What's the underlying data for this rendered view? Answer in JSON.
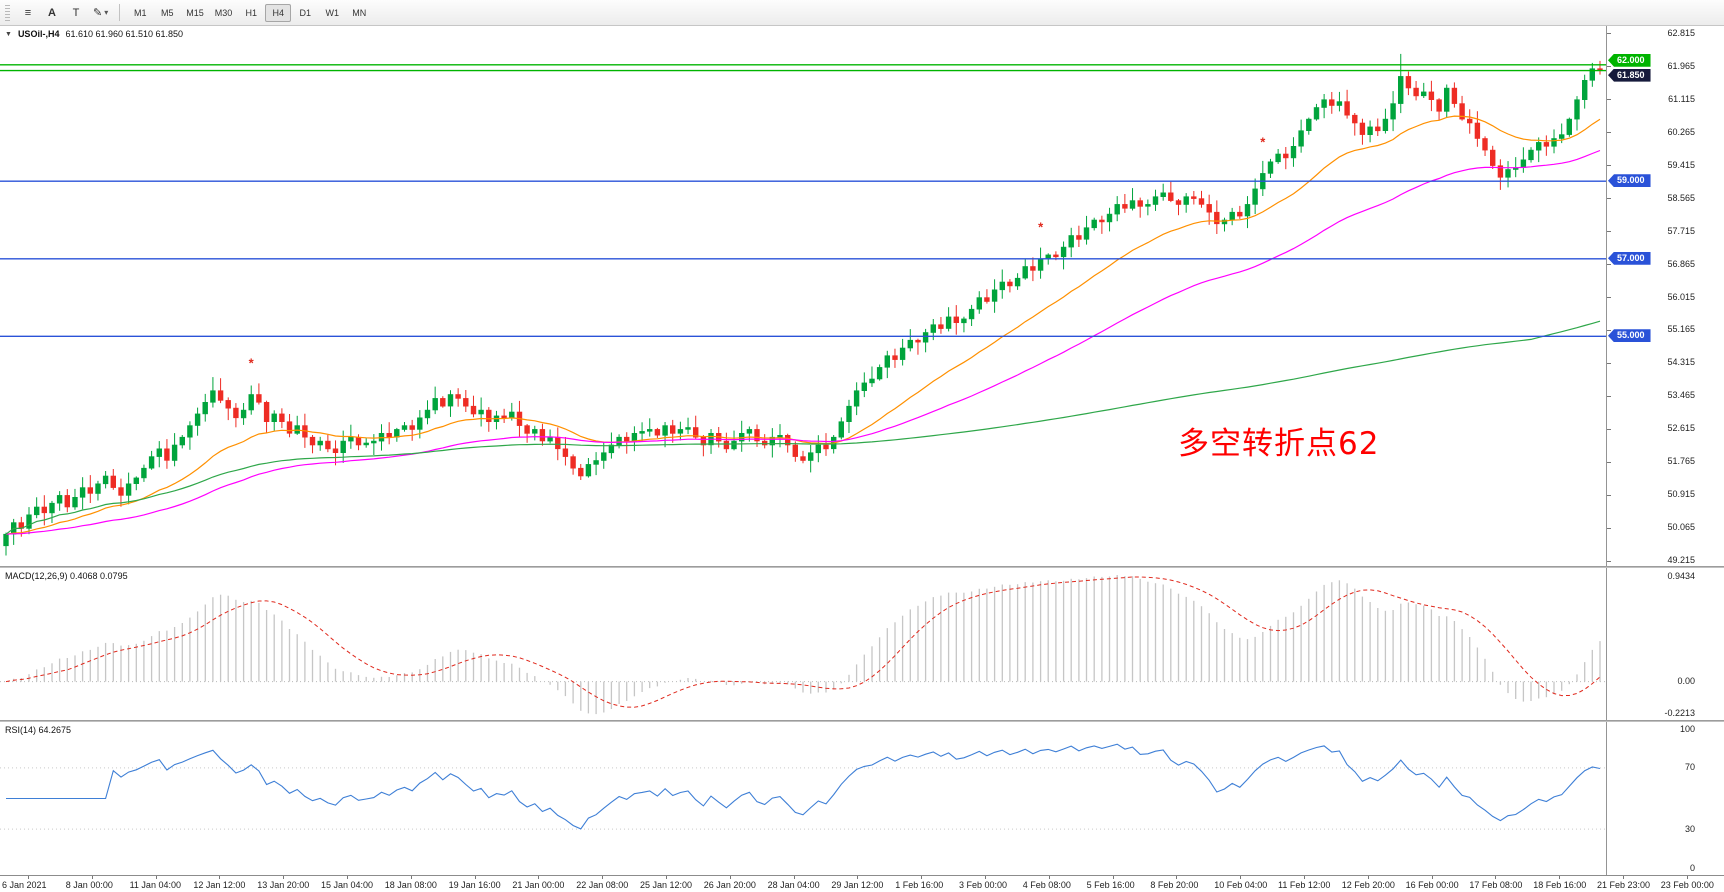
{
  "toolbar": {
    "tools": {
      "menu_glyph": "≡",
      "cursor_label": "A",
      "text_label": "T",
      "draw_glyph": "✎",
      "caret": "▾"
    },
    "timeframes": [
      "M1",
      "M5",
      "M15",
      "M30",
      "H1",
      "H4",
      "D1",
      "W1",
      "MN"
    ],
    "active_timeframe": "H4"
  },
  "chart": {
    "collapse_glyph": "▼",
    "symbol": "USOil-,H4",
    "ohlc": "61.610 61.960 61.510 61.850",
    "annotation": {
      "text": "多空转折点62",
      "color": "#FF0000"
    }
  },
  "colors": {
    "up": "#00A43C",
    "down": "#EE2C24",
    "hline_blue": "#2A52D8",
    "hline_green": "#00B400",
    "last_tag_bg": "#161A3C",
    "macd_hist": "#C6C6C6",
    "macd_signal": "#E02A1E",
    "rsi_line": "#3E7FD6"
  },
  "price_axis_ticks": [
    "62.815",
    "61.965",
    "61.115",
    "60.265",
    "59.415",
    "58.565",
    "57.715",
    "56.865",
    "56.015",
    "55.165",
    "54.315",
    "53.465",
    "52.615",
    "51.765",
    "50.915",
    "50.065",
    "49.215"
  ],
  "chart_data": {
    "type": "candlestick",
    "symbol": "USOil",
    "timeframe": "H4",
    "current_bar": {
      "open": 61.61,
      "high": 61.96,
      "low": 61.51,
      "close": 61.85
    },
    "price_range": {
      "min": 49.08,
      "max": 63.0
    },
    "hlines": [
      {
        "price": 62.0,
        "color": "#00B400",
        "label": "62.000",
        "tag_dy": -4
      },
      {
        "price": 61.85,
        "color": "#00B400",
        "label": null,
        "tag_dy": 0
      },
      {
        "price": 59.0,
        "color": "#2A52D8",
        "label": "59.000",
        "tag_dy": 0
      },
      {
        "price": 57.0,
        "color": "#2A52D8",
        "label": "57.000",
        "tag_dy": 0
      },
      {
        "price": 55.0,
        "color": "#2A52D8",
        "label": "55.000",
        "tag_dy": 0
      }
    ],
    "last_price": {
      "value": 61.85,
      "label": "61.850",
      "tag_dy": 5
    },
    "markers": [
      {
        "bar": 32,
        "price": 54.3
      },
      {
        "bar": 135,
        "price": 57.8
      },
      {
        "bar": 164,
        "price": 60.0
      }
    ],
    "moving_averages": [
      {
        "period": 21,
        "method": "ema",
        "color": "#FF9000"
      },
      {
        "period": 55,
        "method": "ema",
        "color": "#FF00FF"
      },
      {
        "period": 200,
        "method": "sma",
        "color": "#2FA74A"
      }
    ],
    "candles": {
      "first_open": 49.6,
      "high_overrides": {
        "27": 53.95,
        "182": 62.28,
        "207": 62.05,
        "208": 62.1
      },
      "low_overrides": {
        "0": 49.35
      },
      "closes": [
        49.9,
        50.2,
        50.05,
        50.4,
        50.6,
        50.45,
        50.7,
        50.9,
        50.6,
        50.85,
        51.1,
        50.95,
        51.2,
        51.4,
        51.1,
        50.9,
        51.2,
        51.35,
        51.6,
        51.9,
        52.1,
        51.8,
        52.2,
        52.4,
        52.7,
        53.0,
        53.3,
        53.6,
        53.35,
        53.15,
        52.9,
        53.1,
        53.5,
        53.3,
        52.8,
        53.0,
        52.8,
        52.5,
        52.7,
        52.4,
        52.2,
        52.3,
        52.1,
        52.0,
        52.3,
        52.4,
        52.2,
        52.25,
        52.3,
        52.5,
        52.4,
        52.6,
        52.7,
        52.6,
        52.9,
        53.1,
        53.4,
        53.2,
        53.5,
        53.4,
        53.2,
        53.0,
        53.1,
        52.8,
        52.95,
        52.9,
        53.05,
        52.7,
        52.5,
        52.6,
        52.3,
        52.4,
        52.1,
        51.9,
        51.6,
        51.4,
        51.7,
        51.8,
        52.0,
        52.2,
        52.4,
        52.3,
        52.5,
        52.55,
        52.6,
        52.45,
        52.7,
        52.5,
        52.6,
        52.65,
        52.4,
        52.2,
        52.5,
        52.3,
        52.1,
        52.3,
        52.5,
        52.6,
        52.3,
        52.2,
        52.4,
        52.45,
        52.2,
        51.9,
        51.8,
        52.0,
        52.2,
        52.1,
        52.4,
        52.8,
        53.2,
        53.6,
        53.8,
        53.9,
        54.2,
        54.5,
        54.4,
        54.7,
        54.9,
        54.85,
        55.1,
        55.3,
        55.2,
        55.5,
        55.35,
        55.45,
        55.7,
        56.0,
        55.9,
        56.2,
        56.4,
        56.3,
        56.5,
        56.8,
        56.7,
        57.0,
        57.1,
        57.05,
        57.3,
        57.6,
        57.5,
        57.8,
        58.0,
        57.95,
        58.15,
        58.4,
        58.3,
        58.5,
        58.35,
        58.4,
        58.6,
        58.7,
        58.5,
        58.4,
        58.6,
        58.55,
        58.4,
        58.2,
        57.9,
        58.0,
        58.2,
        58.1,
        58.4,
        58.8,
        59.2,
        59.5,
        59.7,
        59.6,
        59.9,
        60.3,
        60.6,
        60.9,
        61.1,
        60.95,
        61.05,
        60.7,
        60.5,
        60.2,
        60.4,
        60.3,
        60.6,
        61.0,
        61.7,
        61.4,
        61.2,
        61.3,
        61.1,
        60.8,
        61.4,
        61.0,
        60.6,
        60.5,
        60.1,
        59.8,
        59.4,
        59.1,
        59.3,
        59.35,
        59.55,
        59.8,
        60.0,
        59.9,
        60.1,
        60.2,
        60.6,
        61.1,
        61.6,
        61.9,
        61.85
      ]
    },
    "macd": {
      "label": "MACD(12,26,9) 0.4068 0.0795",
      "fast": 12,
      "slow": 26,
      "signal": 9,
      "current_values": [
        0.4068,
        0.0795
      ],
      "axis_ticks": [
        "0.9434",
        "0.00",
        "-0.2213"
      ]
    },
    "rsi": {
      "label": "RSI(14) 64.2675",
      "period": 14,
      "current_value": 64.2675,
      "levels": [
        70,
        30
      ],
      "axis_ticks": [
        "100",
        "70",
        "30",
        "0"
      ]
    },
    "time_labels": [
      "6 Jan 2021",
      "8 Jan 00:00",
      "11 Jan 04:00",
      "12 Jan 12:00",
      "13 Jan 20:00",
      "15 Jan 04:00",
      "18 Jan 08:00",
      "19 Jan 16:00",
      "21 Jan 00:00",
      "22 Jan 08:00",
      "25 Jan 12:00",
      "26 Jan 20:00",
      "28 Jan 04:00",
      "29 Jan 12:00",
      "1 Feb 16:00",
      "3 Feb 00:00",
      "4 Feb 08:00",
      "5 Feb 16:00",
      "8 Feb 20:00",
      "10 Feb 04:00",
      "11 Feb 12:00",
      "12 Feb 20:00",
      "16 Feb 00:00",
      "17 Feb 08:00",
      "18 Feb 16:00",
      "21 Feb 23:00",
      "23 Feb 00:00"
    ]
  }
}
